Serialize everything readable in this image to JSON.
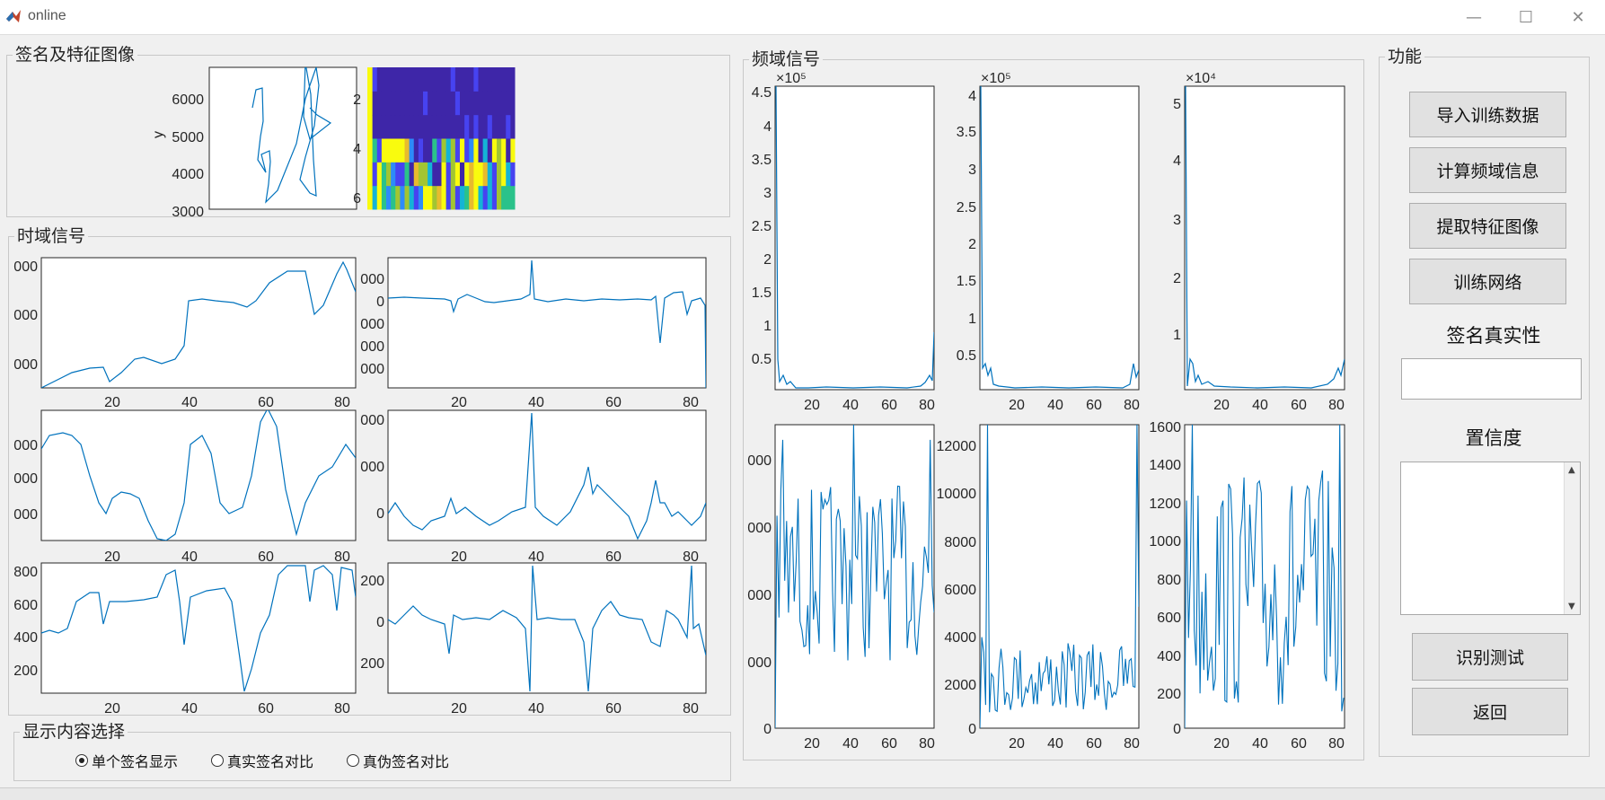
{
  "window": {
    "title": "online",
    "minimize": "—",
    "maximize": "☐",
    "close": "✕"
  },
  "panels": {
    "signature_feature": "签名及特征图像",
    "time_domain": "时域信号",
    "freq_domain": "频域信号",
    "functions": "功能",
    "display_select": "显示内容选择"
  },
  "buttons": {
    "import": "导入训练数据",
    "calc_freq": "计算频域信息",
    "extract": "提取特征图像",
    "train": "训练网络",
    "test": "识别测试",
    "back": "返回"
  },
  "labels": {
    "authenticity": "签名真实性",
    "confidence": "置信度"
  },
  "fields": {
    "authenticity_value": "",
    "confidence_value": ""
  },
  "radios": [
    {
      "label": "单个签名显示",
      "checked": true
    },
    {
      "label": "真实签名对比",
      "checked": false
    },
    {
      "label": "真伪签名对比",
      "checked": false
    }
  ],
  "colors": {
    "line": "#0072bd",
    "bg": "#f0f0f0"
  },
  "chart_data": [
    {
      "id": "sig",
      "type": "line",
      "ylabel": "y",
      "yticks": [
        "6000",
        "5000",
        "4000",
        "3000"
      ]
    },
    {
      "id": "feat",
      "type": "heatmap",
      "yticks": [
        "2",
        "4",
        "6"
      ]
    },
    {
      "id": "t1",
      "type": "line",
      "xticks": [
        "20",
        "40",
        "60",
        "80"
      ],
      "yticks": [
        "000",
        "000",
        "000"
      ]
    },
    {
      "id": "t2",
      "type": "line",
      "xticks": [
        "20",
        "40",
        "60",
        "80"
      ],
      "yticks": [
        "000",
        "0",
        "000",
        "000",
        "000"
      ]
    },
    {
      "id": "t3",
      "type": "line",
      "xticks": [
        "20",
        "40",
        "60",
        "80"
      ],
      "yticks": [
        "000",
        "000",
        "000"
      ]
    },
    {
      "id": "t4",
      "type": "line",
      "xticks": [
        "20",
        "40",
        "60",
        "80"
      ],
      "yticks": [
        "000",
        "000",
        "0"
      ]
    },
    {
      "id": "t5",
      "type": "line",
      "xticks": [
        "20",
        "40",
        "60",
        "80"
      ],
      "yticks": [
        "800",
        "600",
        "400",
        "200"
      ]
    },
    {
      "id": "t6",
      "type": "line",
      "xticks": [
        "20",
        "40",
        "60",
        "80"
      ],
      "yticks": [
        "200",
        "0",
        "200"
      ]
    },
    {
      "id": "f1",
      "type": "line",
      "exponent": "×10⁵",
      "xticks": [
        "20",
        "40",
        "60",
        "80"
      ],
      "yticks": [
        "4.5",
        "4",
        "3.5",
        "3",
        "2.5",
        "2",
        "1.5",
        "1",
        "0.5"
      ]
    },
    {
      "id": "f2",
      "type": "line",
      "exponent": "×10⁵",
      "xticks": [
        "20",
        "40",
        "60",
        "80"
      ],
      "yticks": [
        "4",
        "3.5",
        "3",
        "2.5",
        "2",
        "1.5",
        "1",
        "0.5"
      ]
    },
    {
      "id": "f3",
      "type": "line",
      "exponent": "×10⁴",
      "xticks": [
        "20",
        "40",
        "60",
        "80"
      ],
      "yticks": [
        "5",
        "4",
        "3",
        "2",
        "1"
      ]
    },
    {
      "id": "f4",
      "type": "line",
      "xticks": [
        "20",
        "40",
        "60",
        "80"
      ],
      "yticks": [
        "000",
        "000",
        "000",
        "000",
        "0"
      ]
    },
    {
      "id": "f5",
      "type": "line",
      "xticks": [
        "20",
        "40",
        "60",
        "80"
      ],
      "yticks": [
        "12000",
        "10000",
        "8000",
        "6000",
        "4000",
        "2000",
        "0"
      ]
    },
    {
      "id": "f6",
      "type": "line",
      "xticks": [
        "20",
        "40",
        "60",
        "80"
      ],
      "yticks": [
        "1600",
        "1400",
        "1200",
        "1000",
        "800",
        "600",
        "400",
        "200",
        "0"
      ]
    }
  ]
}
